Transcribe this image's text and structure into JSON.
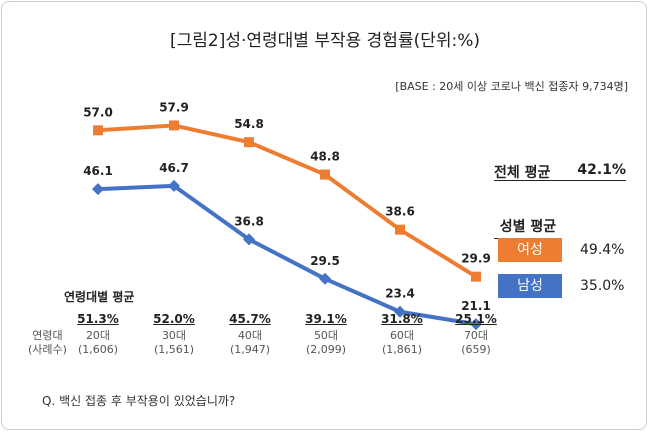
{
  "title": "[그림2]성·연령대별 부작용 경험률(단위:%)",
  "base_note": "[BASE : 20세 이상 코로나 백신 접종자 9,734명]",
  "chart_data": {
    "type": "line",
    "categories": [
      "20대",
      "30대",
      "40대",
      "50대",
      "60대",
      "70대"
    ],
    "series": [
      {
        "name": "여성",
        "color": "#ED7D31",
        "values": [
          57.0,
          57.9,
          54.8,
          48.8,
          38.6,
          29.9
        ]
      },
      {
        "name": "남성",
        "color": "#4472C4",
        "values": [
          46.1,
          46.7,
          36.8,
          29.5,
          23.4,
          21.1
        ]
      }
    ],
    "value_labels": {
      "여성": [
        "57.0",
        "57.9",
        "54.8",
        "48.8",
        "38.6",
        "29.9"
      ],
      "남성": [
        "46.1",
        "46.7",
        "36.8",
        "29.5",
        "23.4",
        "21.1"
      ]
    },
    "grid": false,
    "legend": "right"
  },
  "summary": {
    "total_label": "전체 평균",
    "total_value": "42.1%",
    "gender_title": "성별 평균",
    "female_label": "여성",
    "female_value": "49.4%",
    "male_label": "남성",
    "male_value": "35.0%"
  },
  "age_table": {
    "title": "연령대별 평균",
    "row_label_1": "연령대",
    "row_label_2": "(사례수)",
    "columns": [
      {
        "avg": "51.3%",
        "age": "20대",
        "n": "(1,606)"
      },
      {
        "avg": "52.0%",
        "age": "30대",
        "n": "(1,561)"
      },
      {
        "avg": "45.7%",
        "age": "40대",
        "n": "(1,947)"
      },
      {
        "avg": "39.1%",
        "age": "50대",
        "n": "(2,099)"
      },
      {
        "avg": "31.8%",
        "age": "60대",
        "n": "(1,861)"
      },
      {
        "avg": "25.1%",
        "age": "70대",
        "n": "(659)"
      }
    ]
  },
  "question": "Q. 백신 접종 후 부작용이 있었습니까?"
}
